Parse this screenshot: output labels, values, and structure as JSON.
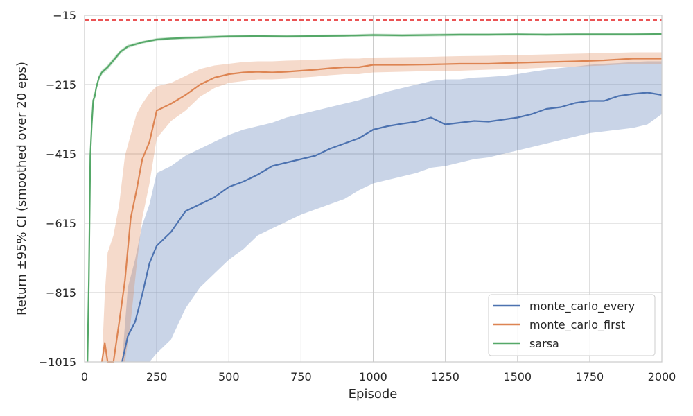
{
  "chart_data": {
    "type": "line",
    "title": "",
    "xlabel": "Episode",
    "ylabel": "Return ±95% CI (smoothed over 20 eps)",
    "xlim": [
      0,
      2000
    ],
    "ylim": [
      -1015,
      -15
    ],
    "xticks": [
      0,
      250,
      500,
      750,
      1000,
      1250,
      1500,
      1750,
      2000
    ],
    "yticks": [
      -1015,
      -815,
      -615,
      -415,
      -215,
      -15
    ],
    "xtick_labels": [
      "0",
      "250",
      "500",
      "750",
      "1000",
      "1250",
      "1500",
      "1750",
      "2000"
    ],
    "ytick_labels": [
      "−1015",
      "−815",
      "−615",
      "−415",
      "−215",
      "−15"
    ],
    "grid": true,
    "legend_position": "bottom-right",
    "reference_line": {
      "y": -15,
      "style": "dashed",
      "color": "#e41a1c"
    },
    "series": [
      {
        "name": "monte_carlo_every",
        "color": "#4c72b0",
        "x": [
          130,
          150,
          175,
          200,
          225,
          250,
          300,
          350,
          400,
          450,
          500,
          550,
          600,
          650,
          700,
          750,
          800,
          850,
          900,
          950,
          1000,
          1050,
          1100,
          1150,
          1200,
          1250,
          1300,
          1350,
          1400,
          1450,
          1500,
          1550,
          1600,
          1650,
          1700,
          1750,
          1800,
          1850,
          1900,
          1950,
          2000
        ],
        "y": [
          -1015,
          -940,
          -900,
          -820,
          -730,
          -680,
          -640,
          -580,
          -560,
          -540,
          -510,
          -495,
          -475,
          -450,
          -440,
          -430,
          -420,
          -400,
          -385,
          -370,
          -345,
          -335,
          -328,
          -322,
          -310,
          -330,
          -325,
          -320,
          -322,
          -316,
          -310,
          -300,
          -285,
          -280,
          -268,
          -262,
          -262,
          -248,
          -242,
          -238,
          -245
        ],
        "ci_lower": [
          -1015,
          -1015,
          -1015,
          -1015,
          -1015,
          -990,
          -950,
          -860,
          -800,
          -760,
          -720,
          -690,
          -650,
          -630,
          -610,
          -590,
          -575,
          -560,
          -545,
          -520,
          -500,
          -490,
          -480,
          -470,
          -455,
          -450,
          -440,
          -430,
          -425,
          -415,
          -405,
          -395,
          -385,
          -375,
          -365,
          -355,
          -350,
          -345,
          -340,
          -330,
          -300
        ],
        "ci_upper": [
          -1015,
          -800,
          -720,
          -620,
          -560,
          -470,
          -450,
          -420,
          -400,
          -380,
          -360,
          -345,
          -335,
          -325,
          -310,
          -300,
          -290,
          -280,
          -270,
          -260,
          -248,
          -235,
          -225,
          -215,
          -205,
          -200,
          -200,
          -195,
          -193,
          -190,
          -185,
          -178,
          -172,
          -167,
          -163,
          -158,
          -155,
          -153,
          -150,
          -148,
          -148
        ]
      },
      {
        "name": "monte_carlo_first",
        "color": "#dd8452",
        "x": [
          60,
          70,
          80,
          100,
          120,
          140,
          160,
          180,
          200,
          225,
          250,
          300,
          350,
          400,
          450,
          500,
          550,
          600,
          650,
          700,
          750,
          800,
          850,
          900,
          950,
          1000,
          1100,
          1200,
          1300,
          1400,
          1500,
          1600,
          1700,
          1800,
          1900,
          2000
        ],
        "y": [
          -1015,
          -960,
          -1015,
          -1015,
          -900,
          -780,
          -600,
          -520,
          -430,
          -380,
          -290,
          -270,
          -245,
          -215,
          -195,
          -185,
          -180,
          -178,
          -180,
          -178,
          -175,
          -172,
          -168,
          -165,
          -165,
          -158,
          -158,
          -157,
          -155,
          -155,
          -152,
          -150,
          -148,
          -145,
          -140,
          -140
        ],
        "ci_lower": [
          -1015,
          -1015,
          -1015,
          -1015,
          -1015,
          -1015,
          -900,
          -740,
          -600,
          -500,
          -370,
          -320,
          -290,
          -250,
          -225,
          -210,
          -205,
          -200,
          -200,
          -198,
          -195,
          -192,
          -188,
          -185,
          -185,
          -180,
          -178,
          -176,
          -175,
          -172,
          -170,
          -166,
          -163,
          -160,
          -155,
          -155
        ],
        "ci_upper": [
          -1015,
          -820,
          -700,
          -650,
          -560,
          -420,
          -360,
          -300,
          -270,
          -240,
          -220,
          -210,
          -190,
          -170,
          -160,
          -155,
          -150,
          -148,
          -148,
          -146,
          -145,
          -143,
          -142,
          -140,
          -140,
          -137,
          -136,
          -135,
          -133,
          -132,
          -130,
          -128,
          -126,
          -124,
          -122,
          -122
        ]
      },
      {
        "name": "sarsa",
        "color": "#55a868",
        "x": [
          10,
          15,
          20,
          25,
          30,
          35,
          40,
          50,
          60,
          80,
          100,
          125,
          150,
          200,
          250,
          300,
          350,
          400,
          500,
          600,
          700,
          800,
          900,
          1000,
          1100,
          1200,
          1300,
          1400,
          1500,
          1600,
          1700,
          1800,
          1900,
          2000
        ],
        "y": [
          -1015,
          -780,
          -420,
          -330,
          -260,
          -250,
          -225,
          -195,
          -180,
          -165,
          -145,
          -120,
          -105,
          -93,
          -85,
          -82,
          -80,
          -79,
          -76,
          -75,
          -76,
          -75,
          -74,
          -72,
          -73,
          -72,
          -71,
          -71,
          -70,
          -71,
          -70,
          -70,
          -70,
          -69
        ],
        "ci_lower": [
          -1015,
          -820,
          -450,
          -350,
          -275,
          -260,
          -235,
          -203,
          -187,
          -172,
          -152,
          -126,
          -110,
          -97,
          -89,
          -86,
          -84,
          -83,
          -80,
          -79,
          -80,
          -79,
          -78,
          -76,
          -77,
          -76,
          -75,
          -75,
          -74,
          -75,
          -74,
          -74,
          -74,
          -73
        ],
        "ci_upper": [
          -1015,
          -740,
          -390,
          -310,
          -245,
          -240,
          -215,
          -187,
          -173,
          -158,
          -138,
          -114,
          -100,
          -89,
          -81,
          -78,
          -76,
          -75,
          -72,
          -71,
          -72,
          -71,
          -70,
          -68,
          -69,
          -68,
          -67,
          -67,
          -66,
          -67,
          -66,
          -66,
          -66,
          -65
        ]
      }
    ]
  }
}
